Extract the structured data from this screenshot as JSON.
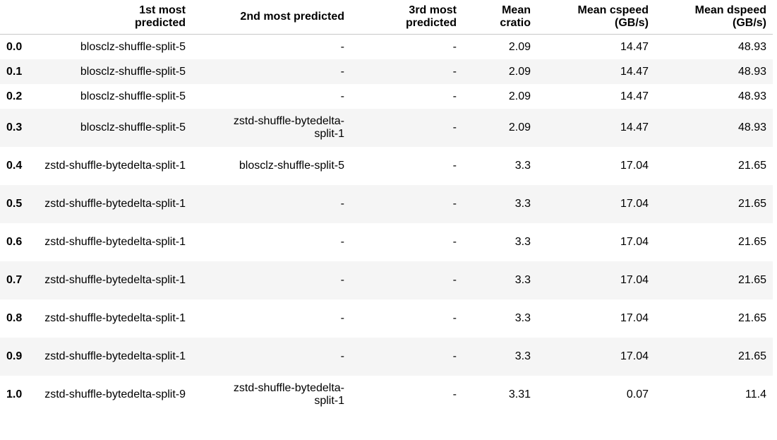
{
  "table": {
    "columns": [
      "",
      "1st most predicted",
      "2nd most predicted",
      "3rd most predicted",
      "Mean cratio",
      "Mean cspeed (GB/s)",
      "Mean dspeed (GB/s)"
    ],
    "rows": [
      {
        "index": "0.0",
        "first": "blosclz-shuffle-split-5",
        "second": "-",
        "third": "-",
        "cratio": "2.09",
        "cspeed": "14.47",
        "dspeed": "48.93"
      },
      {
        "index": "0.1",
        "first": "blosclz-shuffle-split-5",
        "second": "-",
        "third": "-",
        "cratio": "2.09",
        "cspeed": "14.47",
        "dspeed": "48.93"
      },
      {
        "index": "0.2",
        "first": "blosclz-shuffle-split-5",
        "second": "-",
        "third": "-",
        "cratio": "2.09",
        "cspeed": "14.47",
        "dspeed": "48.93"
      },
      {
        "index": "0.3",
        "first": "blosclz-shuffle-split-5",
        "second": "zstd-shuffle-bytedelta-split-1",
        "third": "-",
        "cratio": "2.09",
        "cspeed": "14.47",
        "dspeed": "48.93"
      },
      {
        "index": "0.4",
        "first": "zstd-shuffle-bytedelta-split-1",
        "second": "blosclz-shuffle-split-5",
        "third": "-",
        "cratio": "3.3",
        "cspeed": "17.04",
        "dspeed": "21.65"
      },
      {
        "index": "0.5",
        "first": "zstd-shuffle-bytedelta-split-1",
        "second": "-",
        "third": "-",
        "cratio": "3.3",
        "cspeed": "17.04",
        "dspeed": "21.65"
      },
      {
        "index": "0.6",
        "first": "zstd-shuffle-bytedelta-split-1",
        "second": "-",
        "third": "-",
        "cratio": "3.3",
        "cspeed": "17.04",
        "dspeed": "21.65"
      },
      {
        "index": "0.7",
        "first": "zstd-shuffle-bytedelta-split-1",
        "second": "-",
        "third": "-",
        "cratio": "3.3",
        "cspeed": "17.04",
        "dspeed": "21.65"
      },
      {
        "index": "0.8",
        "first": "zstd-shuffle-bytedelta-split-1",
        "second": "-",
        "third": "-",
        "cratio": "3.3",
        "cspeed": "17.04",
        "dspeed": "21.65"
      },
      {
        "index": "0.9",
        "first": "zstd-shuffle-bytedelta-split-1",
        "second": "-",
        "third": "-",
        "cratio": "3.3",
        "cspeed": "17.04",
        "dspeed": "21.65"
      },
      {
        "index": "1.0",
        "first": "zstd-shuffle-bytedelta-split-9",
        "second": "zstd-shuffle-bytedelta-split-1",
        "third": "-",
        "cratio": "3.31",
        "cspeed": "0.07",
        "dspeed": "11.4"
      }
    ]
  }
}
